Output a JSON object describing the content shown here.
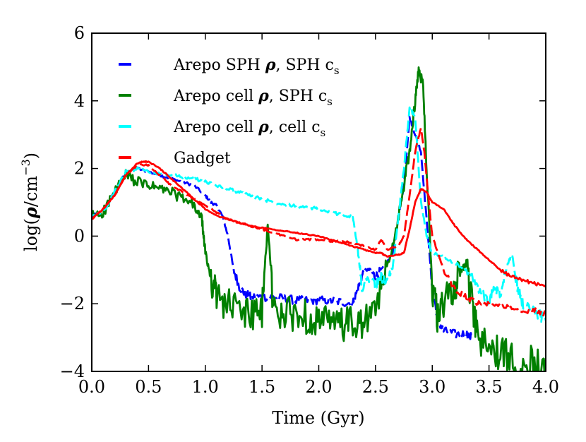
{
  "chart_data": {
    "type": "line",
    "xlabel": "Time (Gyr)",
    "ylabel": "log(ρ/cm⁻³)",
    "ylabel_parts": {
      "pre": "log(",
      "rho": "ρ",
      "mid": "/cm",
      "sup": "−3",
      "post": ")"
    },
    "xlim": [
      0.0,
      4.0
    ],
    "ylim": [
      -4,
      6
    ],
    "x_ticks": [
      0.0,
      0.5,
      1.0,
      1.5,
      2.0,
      2.5,
      3.0,
      3.5,
      4.0
    ],
    "x_tick_labels": [
      "0.0",
      "0.5",
      "1.0",
      "1.5",
      "2.0",
      "2.5",
      "3.0",
      "3.5",
      "4.0"
    ],
    "y_ticks": [
      -4,
      -2,
      0,
      2,
      4,
      6
    ],
    "y_tick_labels": [
      "−4",
      "−2",
      "0",
      "2",
      "4",
      "6"
    ],
    "grid": false,
    "legend_position": "top-left",
    "series": [
      {
        "name": "Arepo SPH ρ, SPH cs",
        "label_parts": {
          "pre": "Arepo SPH ",
          "rho": "ρ",
          "mid": ", SPH c",
          "sub": "s"
        },
        "color": "#0000ff",
        "dashed": true,
        "noise": 0.08,
        "x": [
          0.0,
          0.1,
          0.2,
          0.3,
          0.4,
          0.5,
          0.6,
          0.7,
          0.8,
          0.9,
          1.0,
          1.05,
          1.1,
          1.15,
          1.2,
          1.25,
          1.3,
          1.35,
          1.4,
          1.5,
          1.6,
          1.7,
          1.8,
          1.9,
          2.0,
          2.1,
          2.2,
          2.3,
          2.35,
          2.4,
          2.45,
          2.5,
          2.55,
          2.6,
          2.65,
          2.7,
          2.75,
          2.8,
          2.85,
          2.9,
          2.95,
          3.0,
          3.05,
          3.1,
          3.2,
          3.3,
          3.35
        ],
        "y": [
          0.6,
          0.7,
          1.3,
          1.9,
          2.0,
          1.9,
          1.8,
          1.7,
          1.6,
          1.5,
          1.2,
          1.0,
          0.9,
          0.6,
          0.0,
          -1.0,
          -1.5,
          -1.7,
          -1.8,
          -1.8,
          -1.8,
          -1.85,
          -1.9,
          -1.9,
          -1.9,
          -1.9,
          -1.95,
          -2.0,
          -1.5,
          -1.0,
          -1.0,
          -1.2,
          -1.0,
          -0.8,
          -0.5,
          0.5,
          1.5,
          3.5,
          3.0,
          2.5,
          0.5,
          -1.5,
          -2.5,
          -2.8,
          -2.9,
          -2.9,
          -3.0
        ]
      },
      {
        "name": "Arepo cell ρ, SPH cs",
        "label_parts": {
          "pre": "Arepo cell ",
          "rho": "ρ",
          "mid": ", SPH c",
          "sub": "s"
        },
        "color": "#008000",
        "dashed": false,
        "noise": 0.32,
        "x": [
          0.0,
          0.1,
          0.2,
          0.3,
          0.4,
          0.5,
          0.6,
          0.7,
          0.8,
          0.9,
          0.97,
          1.0,
          1.05,
          1.1,
          1.2,
          1.3,
          1.4,
          1.5,
          1.55,
          1.6,
          1.7,
          1.8,
          1.9,
          2.0,
          2.1,
          2.2,
          2.3,
          2.4,
          2.5,
          2.6,
          2.7,
          2.75,
          2.8,
          2.85,
          2.88,
          2.92,
          2.95,
          3.0,
          3.05,
          3.1,
          3.2,
          3.25,
          3.3,
          3.35,
          3.4,
          3.5,
          3.6,
          3.7,
          3.8,
          3.9,
          4.0
        ],
        "y": [
          0.6,
          0.7,
          1.3,
          1.8,
          1.6,
          1.5,
          1.4,
          1.3,
          1.1,
          0.9,
          0.5,
          -0.5,
          -1.2,
          -1.8,
          -2.0,
          -2.2,
          -2.3,
          -2.3,
          0.4,
          -2.2,
          -2.3,
          -2.3,
          -2.4,
          -2.5,
          -2.6,
          -2.6,
          -2.6,
          -2.6,
          -2.2,
          -1.0,
          0.5,
          1.5,
          2.5,
          4.0,
          4.9,
          4.5,
          2.0,
          -1.5,
          -2.5,
          -2.0,
          -1.5,
          -1.0,
          -0.8,
          -2.0,
          -3.0,
          -3.3,
          -3.5,
          -3.6,
          -3.7,
          -3.7,
          -3.6
        ]
      },
      {
        "name": "Arepo cell ρ, cell cs",
        "label_parts": {
          "pre": "Arepo cell ",
          "rho": "ρ",
          "mid": ", cell c",
          "sub": "s"
        },
        "color": "#00ffff",
        "dashed": true,
        "noise": 0.1,
        "x": [
          0.0,
          0.1,
          0.2,
          0.3,
          0.4,
          0.5,
          0.6,
          0.7,
          0.8,
          0.9,
          1.0,
          1.1,
          1.2,
          1.3,
          1.4,
          1.5,
          1.6,
          1.7,
          1.8,
          1.9,
          2.0,
          2.1,
          2.2,
          2.3,
          2.34,
          2.38,
          2.45,
          2.5,
          2.55,
          2.6,
          2.65,
          2.7,
          2.75,
          2.8,
          2.85,
          2.9,
          2.95,
          3.0,
          3.1,
          3.2,
          3.3,
          3.4,
          3.5,
          3.55,
          3.6,
          3.65,
          3.7,
          3.75,
          3.8,
          3.9,
          4.0
        ],
        "y": [
          0.6,
          0.7,
          1.3,
          1.9,
          2.0,
          1.9,
          1.85,
          1.8,
          1.75,
          1.7,
          1.6,
          1.5,
          1.4,
          1.3,
          1.2,
          1.1,
          1.0,
          0.95,
          0.9,
          0.85,
          0.8,
          0.7,
          0.65,
          0.55,
          -0.3,
          -1.5,
          -1.2,
          -1.5,
          -1.2,
          -1.4,
          -1.0,
          0.5,
          2.0,
          3.8,
          3.5,
          1.0,
          0.0,
          -0.5,
          -0.6,
          -0.8,
          -1.0,
          -1.5,
          -2.0,
          -1.5,
          -1.8,
          -1.0,
          -0.5,
          -1.5,
          -2.0,
          -2.2,
          -2.5
        ]
      },
      {
        "name": "Gadget",
        "label_parts": {
          "pre": "Gadget",
          "rho": "",
          "mid": "",
          "sub": ""
        },
        "color": "#ff0000",
        "dashed": true,
        "noise": 0.05,
        "x": [
          0.0,
          0.1,
          0.2,
          0.3,
          0.4,
          0.5,
          0.6,
          0.7,
          0.8,
          0.9,
          1.0,
          1.1,
          1.2,
          1.3,
          1.4,
          1.5,
          1.6,
          1.7,
          1.8,
          1.9,
          2.0,
          2.1,
          2.2,
          2.3,
          2.4,
          2.5,
          2.55,
          2.6,
          2.7,
          2.75,
          2.8,
          2.85,
          2.9,
          2.93,
          2.97,
          3.0,
          3.05,
          3.1,
          3.2,
          3.3,
          3.4,
          3.5,
          3.6,
          3.7,
          3.8,
          3.9,
          4.0
        ],
        "y": [
          0.5,
          0.8,
          1.2,
          1.8,
          2.1,
          2.1,
          1.8,
          1.5,
          1.3,
          1.1,
          0.9,
          0.7,
          0.5,
          0.4,
          0.3,
          0.2,
          0.1,
          0.0,
          -0.1,
          -0.1,
          -0.1,
          -0.15,
          -0.15,
          -0.2,
          -0.3,
          -0.4,
          -0.1,
          -0.4,
          -0.3,
          0.0,
          1.2,
          2.5,
          3.2,
          2.5,
          1.0,
          0.0,
          -0.5,
          -1.0,
          -1.6,
          -1.8,
          -2.0,
          -2.0,
          -2.05,
          -2.1,
          -2.2,
          -2.2,
          -2.3
        ]
      },
      {
        "name": "",
        "color": "#ff0000",
        "dashed": false,
        "noise": 0.03,
        "x": [
          0.0,
          0.1,
          0.2,
          0.3,
          0.4,
          0.45,
          0.5,
          0.6,
          0.7,
          0.8,
          0.9,
          1.0,
          1.1,
          1.2,
          1.3,
          1.4,
          1.5,
          1.6,
          1.7,
          1.8,
          1.9,
          2.0,
          2.1,
          2.2,
          2.3,
          2.4,
          2.5,
          2.55,
          2.6,
          2.7,
          2.75,
          2.8,
          2.85,
          2.9,
          2.95,
          3.0,
          3.1,
          3.2,
          3.3,
          3.4,
          3.5,
          3.6,
          3.7,
          3.8,
          3.9,
          4.0
        ],
        "y": [
          0.5,
          0.8,
          1.2,
          1.8,
          2.15,
          2.2,
          2.2,
          2.0,
          1.7,
          1.4,
          1.1,
          0.8,
          0.6,
          0.5,
          0.4,
          0.3,
          0.25,
          0.2,
          0.15,
          0.1,
          0.05,
          0.0,
          -0.1,
          -0.2,
          -0.3,
          -0.4,
          -0.5,
          -0.5,
          -0.6,
          -0.55,
          -0.5,
          0.2,
          1.0,
          1.4,
          1.3,
          1.0,
          0.8,
          0.3,
          -0.1,
          -0.4,
          -0.7,
          -1.0,
          -1.2,
          -1.3,
          -1.4,
          -1.45
        ]
      }
    ]
  }
}
